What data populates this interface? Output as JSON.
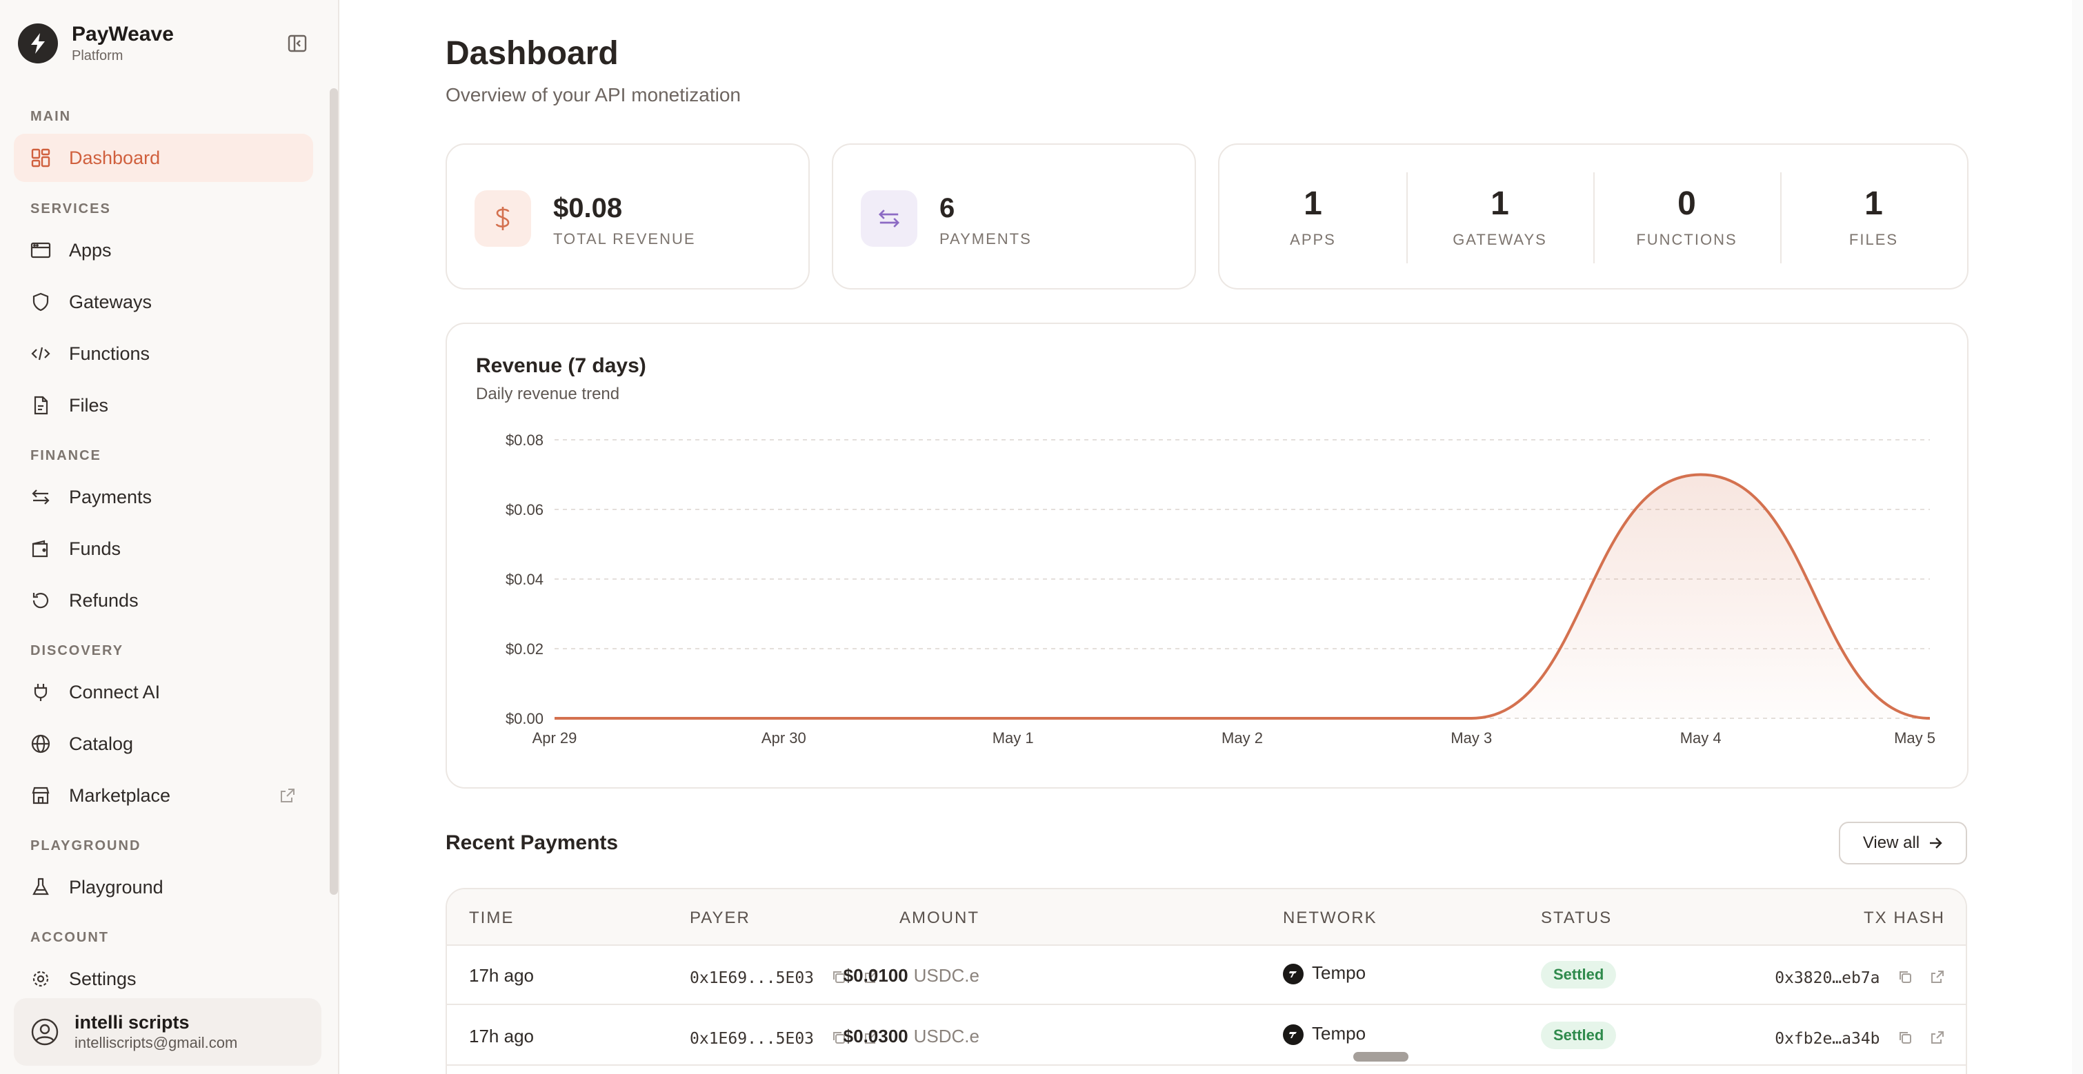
{
  "brand": {
    "name": "PayWeave",
    "subtitle": "Platform"
  },
  "sidebar": {
    "sections": [
      {
        "title": "MAIN"
      },
      {
        "title": "SERVICES"
      },
      {
        "title": "FINANCE"
      },
      {
        "title": "DISCOVERY"
      },
      {
        "title": "PLAYGROUND"
      },
      {
        "title": "ACCOUNT"
      }
    ],
    "items": [
      {
        "label": "Dashboard",
        "icon": "grid-icon",
        "active": true
      },
      {
        "label": "Apps",
        "icon": "browser-window-icon"
      },
      {
        "label": "Gateways",
        "icon": "shield-icon"
      },
      {
        "label": "Functions",
        "icon": "code-icon"
      },
      {
        "label": "Files",
        "icon": "file-icon"
      },
      {
        "label": "Payments",
        "icon": "arrows-swap-icon"
      },
      {
        "label": "Funds",
        "icon": "wallet-icon"
      },
      {
        "label": "Refunds",
        "icon": "refresh-icon"
      },
      {
        "label": "Connect AI",
        "icon": "plug-icon"
      },
      {
        "label": "Catalog",
        "icon": "globe-icon"
      },
      {
        "label": "Marketplace",
        "icon": "store-icon",
        "external": true
      },
      {
        "label": "Playground",
        "icon": "flask-icon"
      },
      {
        "label": "Settings",
        "icon": "gear-icon"
      }
    ],
    "user": {
      "name": "intelli scripts",
      "email": "intelliscripts@gmail.com"
    }
  },
  "header": {
    "title": "Dashboard",
    "subtitle": "Overview of your API monetization"
  },
  "stats": {
    "revenue": {
      "value": "$0.08",
      "label": "TOTAL REVENUE",
      "icon": "dollar-icon"
    },
    "payments": {
      "value": "6",
      "label": "PAYMENTS",
      "icon": "arrows-swap-icon"
    },
    "counts": [
      {
        "value": "1",
        "label": "APPS"
      },
      {
        "value": "1",
        "label": "GATEWAYS"
      },
      {
        "value": "0",
        "label": "FUNCTIONS"
      },
      {
        "value": "1",
        "label": "FILES"
      }
    ]
  },
  "chart_data": {
    "type": "area",
    "title": "Revenue (7 days)",
    "subtitle": "Daily revenue trend",
    "categories": [
      "Apr 29",
      "Apr 30",
      "May 1",
      "May 2",
      "May 3",
      "May 4",
      "May 5"
    ],
    "series": [
      {
        "values": [
          0,
          0,
          0,
          0,
          0,
          0.07,
          0
        ]
      }
    ],
    "yticks": [
      "$0.00",
      "$0.02",
      "$0.04",
      "$0.06",
      "$0.08"
    ],
    "ylim": [
      0,
      0.08
    ],
    "grid": true,
    "color": "#d4714f"
  },
  "recent": {
    "title": "Recent Payments",
    "view_all": "View all",
    "columns": [
      "TIME",
      "PAYER",
      "AMOUNT",
      "NETWORK",
      "STATUS",
      "TX HASH"
    ],
    "rows": [
      {
        "time": "17h ago",
        "payer": "0x1E69...5E03",
        "amount": "$0.0100",
        "currency": "USDC.e",
        "network": "Tempo",
        "status": "Settled",
        "tx": "0x3820…eb7a"
      },
      {
        "time": "17h ago",
        "payer": "0x1E69...5E03",
        "amount": "$0.0300",
        "currency": "USDC.e",
        "network": "Tempo",
        "status": "Settled",
        "tx": "0xfb2e…a34b"
      }
    ]
  }
}
